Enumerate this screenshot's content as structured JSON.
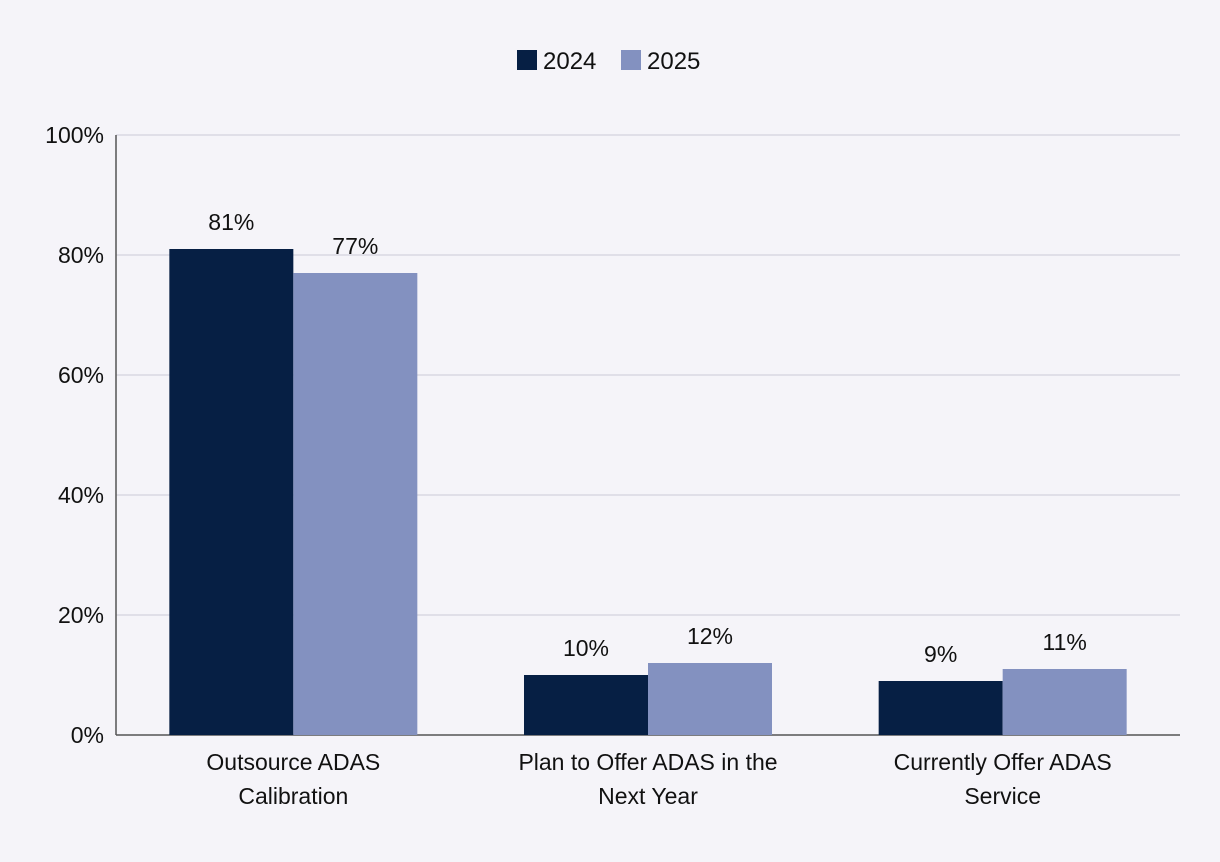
{
  "chart_data": {
    "type": "bar",
    "title": "",
    "xlabel": "",
    "ylabel": "",
    "ylim": [
      0,
      100
    ],
    "yticks": [
      0,
      20,
      40,
      60,
      80,
      100
    ],
    "ytick_labels": [
      "0%",
      "20%",
      "40%",
      "60%",
      "80%",
      "100%"
    ],
    "grid": true,
    "legend_position": "top-center",
    "categories": [
      [
        "Outsource ADAS",
        "Calibration"
      ],
      [
        "Plan to Offer ADAS in the",
        "Next Year"
      ],
      [
        "Currently Offer ADAS",
        "Service"
      ]
    ],
    "series": [
      {
        "name": "2024",
        "color": "#061f44",
        "values": [
          81,
          10,
          9
        ],
        "labels": [
          "81%",
          "10%",
          "9%"
        ]
      },
      {
        "name": "2025",
        "color": "#8391c0",
        "values": [
          77,
          12,
          11
        ],
        "labels": [
          "77%",
          "12%",
          "11%"
        ]
      }
    ]
  }
}
